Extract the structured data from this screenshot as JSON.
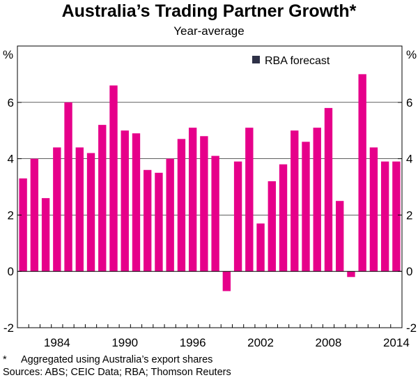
{
  "header": {
    "title": "Australia’s Trading Partner Growth*",
    "subtitle": "Year-average"
  },
  "footnote": {
    "marker": "*",
    "text": "Aggregated using Australia’s export shares",
    "sources": "Sources: ABS; CEIC Data; RBA; Thomson Reuters"
  },
  "chart_data": {
    "type": "bar",
    "title": "Australia’s Trading Partner Growth*",
    "subtitle": "Year-average",
    "y_unit_left": "%",
    "y_unit_right": "%",
    "ylim": [
      -2,
      8
    ],
    "yticks": [
      -2,
      0,
      2,
      4,
      6
    ],
    "x_tick_labels": [
      "1984",
      "1990",
      "1996",
      "2002",
      "2008",
      "2014"
    ],
    "x_tick_years": [
      1984,
      1990,
      1996,
      2002,
      2008,
      2014
    ],
    "legend": {
      "label": "RBA forecast",
      "placement": "top-right"
    },
    "colors": {
      "actual": "#e6008a",
      "forecast": "#2e3147"
    },
    "years": [
      1981,
      1982,
      1983,
      1984,
      1985,
      1986,
      1987,
      1988,
      1989,
      1990,
      1991,
      1992,
      1993,
      1994,
      1995,
      1996,
      1997,
      1998,
      1999,
      2000,
      2001,
      2002,
      2003,
      2004,
      2005,
      2006,
      2007,
      2008,
      2009,
      2010,
      2011,
      2012,
      2013,
      2014
    ],
    "values": [
      3.3,
      4.0,
      2.6,
      4.4,
      6.0,
      4.4,
      4.2,
      5.2,
      6.6,
      5.0,
      4.9,
      3.6,
      3.5,
      4.0,
      4.7,
      5.1,
      4.8,
      4.1,
      -0.7,
      3.9,
      5.1,
      1.7,
      3.2,
      3.8,
      5.0,
      4.6,
      5.1,
      5.8,
      2.5,
      -0.2,
      7.0,
      4.4,
      3.9,
      3.9
    ],
    "forecast": [
      false,
      false,
      false,
      false,
      false,
      false,
      false,
      false,
      false,
      false,
      false,
      false,
      false,
      false,
      false,
      false,
      false,
      false,
      false,
      false,
      false,
      false,
      false,
      false,
      false,
      false,
      false,
      false,
      false,
      false,
      false,
      false,
      false,
      false
    ]
  }
}
